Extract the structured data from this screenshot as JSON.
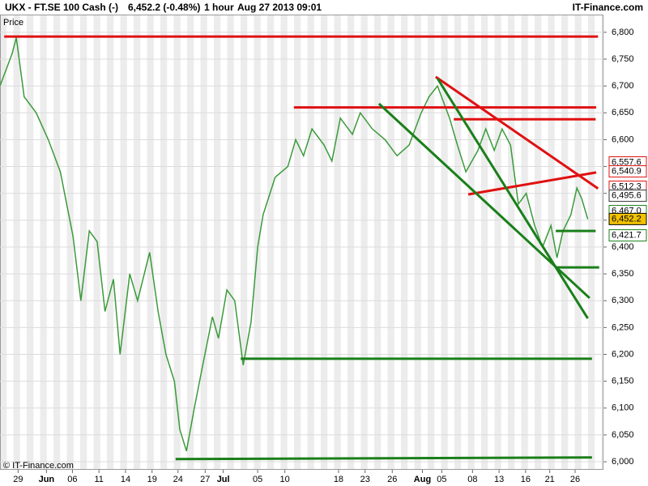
{
  "chart_data": {
    "type": "line",
    "title": "UKX - FT.SE 100 Cash (-)",
    "subtitle": "6,452.2 (-0.48%)",
    "interval": "1 hour",
    "timestamp": "Aug 27 2013 09:01",
    "brand": "IT-Finance.com",
    "y_label": "Price",
    "copyright": "© IT-Finance.com",
    "ylim": [
      5985,
      6833
    ],
    "yticks": [
      {
        "value": 6000,
        "label": "6,000"
      },
      {
        "value": 6050,
        "label": "6,050"
      },
      {
        "value": 6100,
        "label": "6,100"
      },
      {
        "value": 6150,
        "label": "6,150"
      },
      {
        "value": 6200,
        "label": "6,200"
      },
      {
        "value": 6250,
        "label": "6,250"
      },
      {
        "value": 6300,
        "label": "6,300"
      },
      {
        "value": 6350,
        "label": "6,350"
      },
      {
        "value": 6400,
        "label": "6,400"
      },
      {
        "value": 6450,
        "label": "6,450"
      },
      {
        "value": 6500,
        "label": "6,500"
      },
      {
        "value": 6550,
        "label": "6,550"
      },
      {
        "value": 6600,
        "label": "6,600"
      },
      {
        "value": 6650,
        "label": "6,650"
      },
      {
        "value": 6700,
        "label": "6,700"
      },
      {
        "value": 6750,
        "label": "6,750"
      },
      {
        "value": 6800,
        "label": "6,800"
      }
    ],
    "xlim": [
      0,
      100
    ],
    "xticks": [
      {
        "value": 3,
        "label": "29"
      },
      {
        "value": 7.7,
        "label": "Jun"
      },
      {
        "value": 12,
        "label": "06"
      },
      {
        "value": 16.4,
        "label": "11"
      },
      {
        "value": 20.8,
        "label": "14"
      },
      {
        "value": 25.2,
        "label": "19"
      },
      {
        "value": 29.5,
        "label": "24"
      },
      {
        "value": 34,
        "label": "27"
      },
      {
        "value": 37,
        "label": "Jul"
      },
      {
        "value": 42.7,
        "label": "05"
      },
      {
        "value": 47.2,
        "label": "10"
      },
      {
        "value": 56.1,
        "label": "18"
      },
      {
        "value": 60.5,
        "label": "23"
      },
      {
        "value": 65,
        "label": "26"
      },
      {
        "value": 70,
        "label": "Aug"
      },
      {
        "value": 73.2,
        "label": "05"
      },
      {
        "value": 78.3,
        "label": "08"
      },
      {
        "value": 82.7,
        "label": "13"
      },
      {
        "value": 87.1,
        "label": "16"
      },
      {
        "value": 91.1,
        "label": "21"
      },
      {
        "value": 95.3,
        "label": "26"
      }
    ],
    "grid": true,
    "series": [
      {
        "color": "#3a9a3a",
        "x": [
          0,
          2,
          2.7,
          4,
          6,
          8,
          10,
          12.1,
          13.4,
          14.8,
          16.1,
          17.4,
          18.8,
          19.9,
          21.5,
          22.8,
          24.8,
          26.2,
          27.5,
          28.9,
          29.8,
          30.9,
          32.2,
          33.6,
          35.2,
          36.2,
          37.6,
          38.9,
          40.3,
          41.6,
          42.7,
          43.6,
          45.6,
          47.7,
          49,
          50.3,
          51.7,
          53.7,
          55,
          56.4,
          58.4,
          59.7,
          61.7,
          63.8,
          65.8,
          67.8,
          69.8,
          71.1,
          72.5,
          74.5,
          75.8,
          77.2,
          79.2,
          80.5,
          81.9,
          83.2,
          84.6,
          85.9,
          87.2,
          88.6,
          89.9,
          91.3,
          92.3,
          93.3,
          94.6,
          95.6,
          96.4,
          97.4
        ],
        "values": [
          6700,
          6760,
          6790,
          6680,
          6650,
          6600,
          6540,
          6420,
          6300,
          6430,
          6410,
          6280,
          6340,
          6200,
          6350,
          6300,
          6390,
          6280,
          6200,
          6150,
          6060,
          6020,
          6100,
          6180,
          6270,
          6230,
          6320,
          6300,
          6180,
          6260,
          6400,
          6460,
          6530,
          6550,
          6600,
          6570,
          6620,
          6590,
          6560,
          6640,
          6610,
          6650,
          6620,
          6600,
          6570,
          6590,
          6650,
          6680,
          6700,
          6640,
          6590,
          6540,
          6580,
          6620,
          6580,
          6620,
          6590,
          6480,
          6500,
          6440,
          6400,
          6440,
          6380,
          6430,
          6460,
          6510,
          6490,
          6452
        ]
      }
    ],
    "trendlines": [
      {
        "color": "#e01010",
        "x": [
          0.7,
          99.1
        ],
        "y": [
          6792,
          6792
        ]
      },
      {
        "color": "#e01010",
        "x": [
          48.7,
          98.8
        ],
        "y": [
          6660,
          6660
        ]
      },
      {
        "color": "#e01010",
        "x": [
          75.2,
          98.7
        ],
        "y": [
          6638,
          6638
        ]
      },
      {
        "color": "#e01010",
        "x": [
          72.2,
          99.1
        ],
        "y": [
          6717,
          6509
        ]
      },
      {
        "color": "#e01010",
        "x": [
          77.6,
          98.8
        ],
        "y": [
          6498,
          6539
        ]
      },
      {
        "color": "#1a7f1a",
        "x": [
          62.8,
          97.7
        ],
        "y": [
          6667,
          6305
        ]
      },
      {
        "color": "#1a7f1a",
        "x": [
          72.5,
          97.4
        ],
        "y": [
          6714,
          6267
        ]
      },
      {
        "color": "#1a7f1a",
        "x": [
          92.1,
          99.3
        ],
        "y": [
          6362,
          6362
        ]
      },
      {
        "color": "#1a7f1a",
        "x": [
          92.1,
          98.7
        ],
        "y": [
          6430,
          6430
        ]
      },
      {
        "color": "#1a7f1a",
        "x": [
          39.9,
          98.1
        ],
        "y": [
          6192,
          6192
        ]
      },
      {
        "color": "#1a7f1a",
        "x": [
          29.1,
          98.1
        ],
        "y": [
          6005,
          6008
        ]
      }
    ],
    "price_tags": [
      {
        "value": 6557.6,
        "label": "6,557.6",
        "color": "#e01010",
        "fill": "#ffffff"
      },
      {
        "value": 6540.9,
        "label": "6,540.9",
        "color": "#e01010",
        "fill": "#ffffff"
      },
      {
        "value": 6512.3,
        "label": "6,512.3",
        "color": "#e01010",
        "fill": "#ffffff"
      },
      {
        "value": 6495.6,
        "label": "6,495.6",
        "color": "#333333",
        "fill": "#ffffff"
      },
      {
        "value": 6467.0,
        "label": "6,467.0",
        "color": "#1a7f1a",
        "fill": "#ffffff"
      },
      {
        "value": 6452.2,
        "label": "6,452.2",
        "color": "#000000",
        "fill": "#f2c200"
      },
      {
        "value": 6421.7,
        "label": "6,421.7",
        "color": "#1a7f1a",
        "fill": "#ffffff"
      }
    ]
  }
}
